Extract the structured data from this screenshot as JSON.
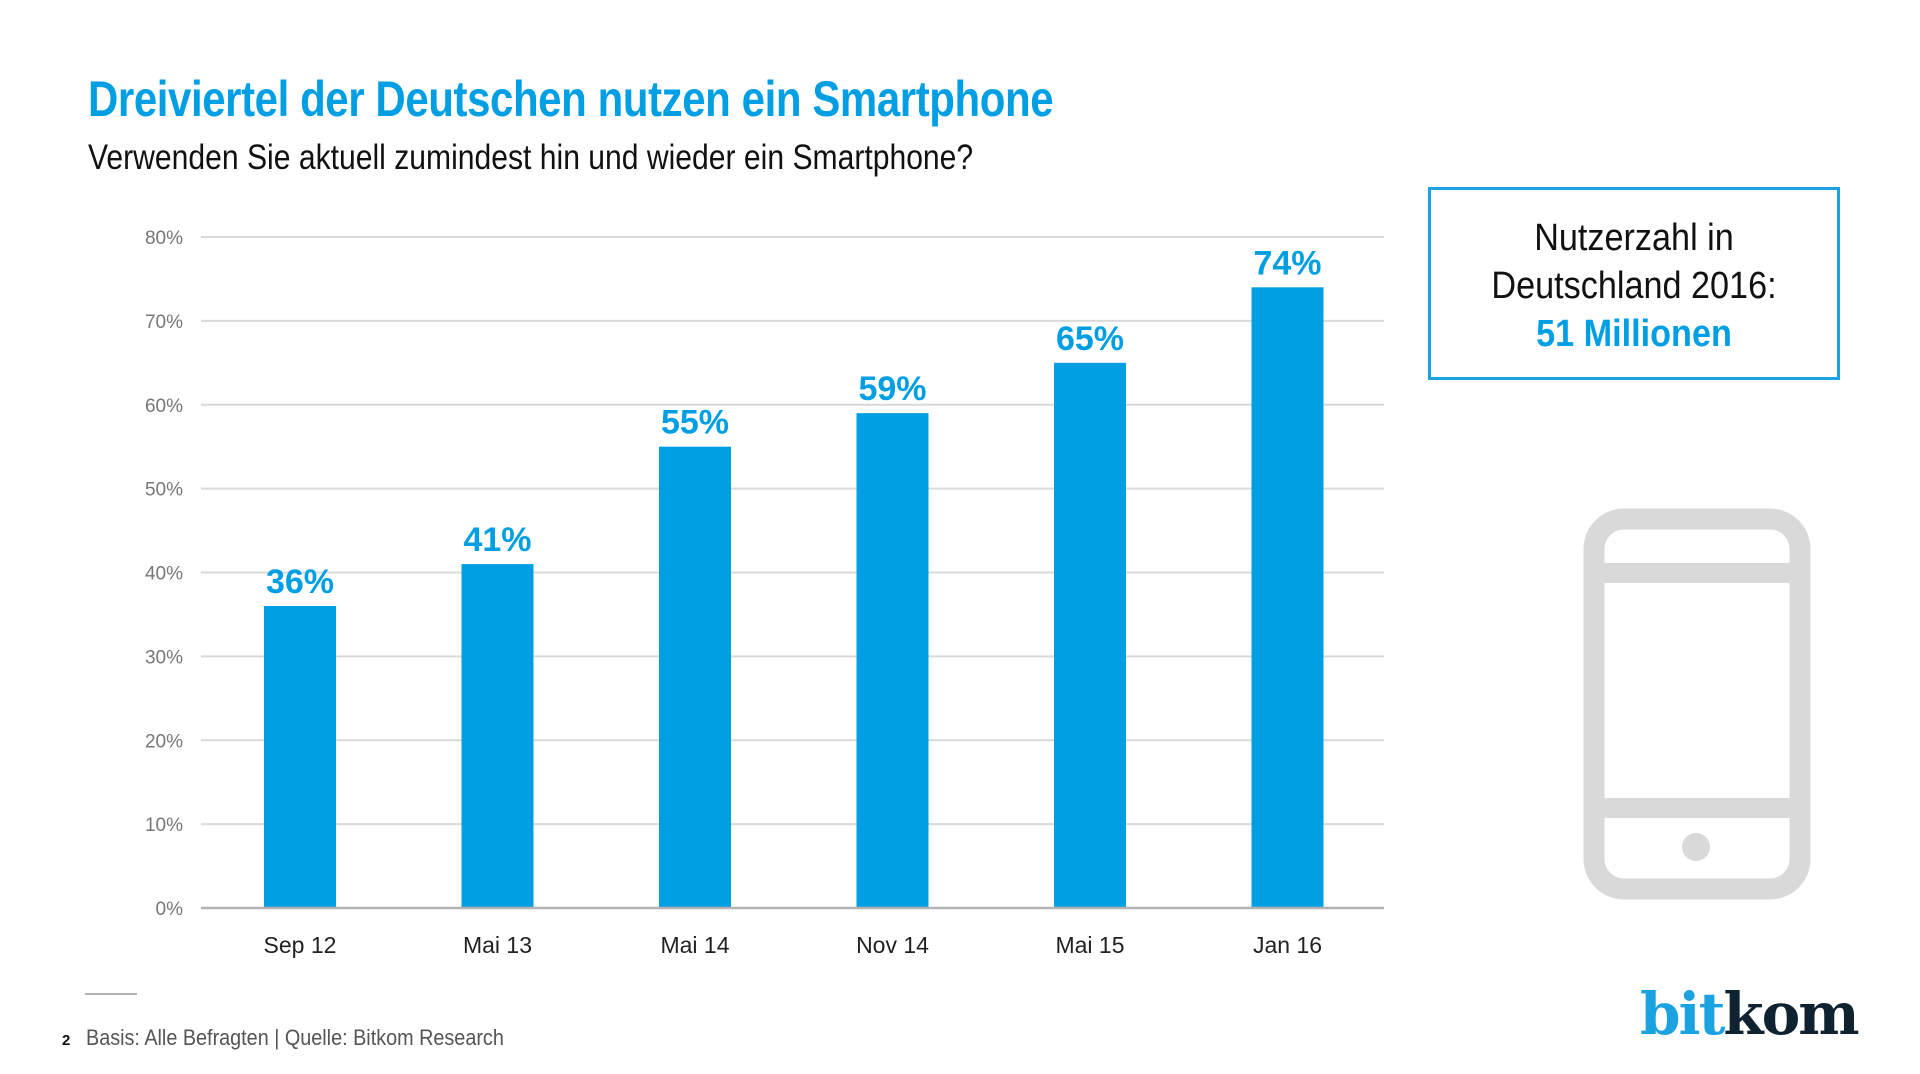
{
  "header": {
    "title": "Dreiviertel der Deutschen nutzen ein Smartphone",
    "subtitle": "Verwenden Sie aktuell zumindest hin und wieder ein Smartphone?"
  },
  "info_box": {
    "line1": "Nutzerzahl in",
    "line2": "Deutschland 2016:",
    "value": "51 Millionen"
  },
  "icons": {
    "phone": "smartphone-icon"
  },
  "footer": {
    "page_number": "2",
    "source": "Basis: Alle Befragten | Quelle: Bitkom Research"
  },
  "logo": {
    "part1": "bit",
    "part2": "kom"
  },
  "colors": {
    "accent": "#009fe3",
    "bar": "#009fe3",
    "grid": "#d9d9d9",
    "axis": "#b3b3b3",
    "tick_label": "#777777",
    "category_label": "#222222",
    "phone_icon": "#d9d9d9"
  },
  "chart_data": {
    "type": "bar",
    "title": "Dreiviertel der Deutschen nutzen ein Smartphone",
    "subtitle": "Verwenden Sie aktuell zumindest hin und wieder ein Smartphone?",
    "categories": [
      "Sep 12",
      "Mai 13",
      "Mai 14",
      "Nov 14",
      "Mai 15",
      "Jan 16"
    ],
    "values": [
      36,
      41,
      55,
      59,
      65,
      74
    ],
    "data_labels": [
      "36%",
      "41%",
      "55%",
      "59%",
      "65%",
      "74%"
    ],
    "xlabel": "",
    "ylabel": "",
    "ylim": [
      0,
      80
    ],
    "yticks": [
      0,
      10,
      20,
      30,
      40,
      50,
      60,
      70,
      80
    ],
    "ytick_labels": [
      "0%",
      "10%",
      "20%",
      "30%",
      "40%",
      "50%",
      "60%",
      "70%",
      "80%"
    ],
    "grid": true,
    "legend": "none"
  }
}
